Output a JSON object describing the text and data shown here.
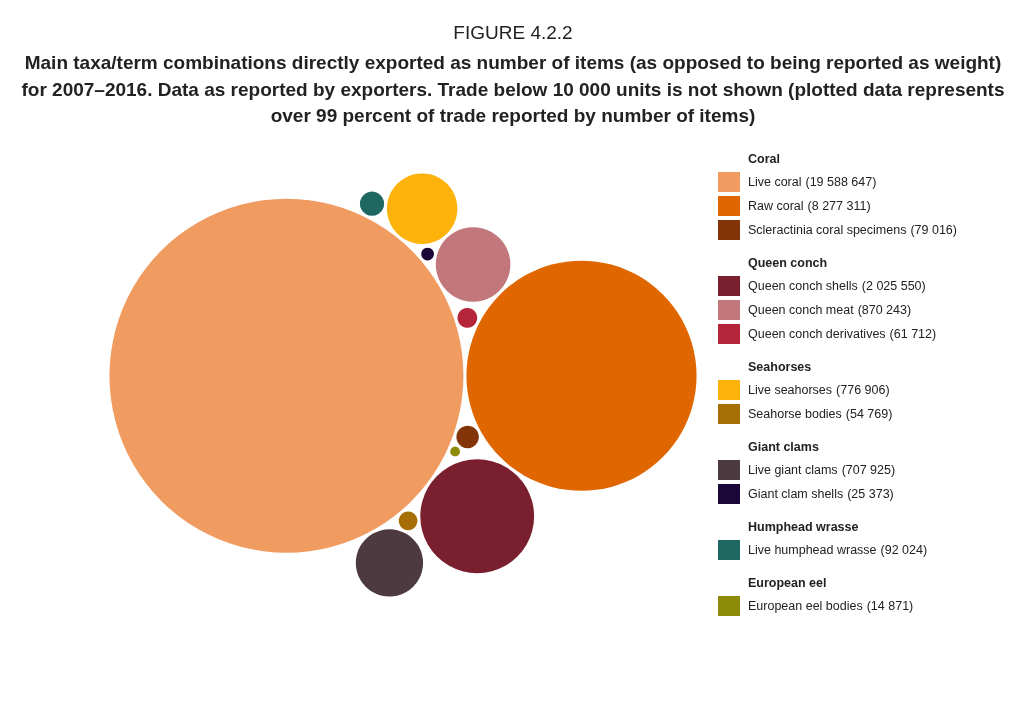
{
  "chart_data": {
    "type": "other",
    "title": "FIGURE 4.2.2",
    "subtitle": "Main taxa/term combinations directly exported as number of items (as opposed to being reported as weight) for 2007–2016. Data as reported by exporters. Trade below 10 000 units is not shown (plotted data represents over 99 percent of trade reported by number of items)",
    "categories": [
      "Live coral",
      "Raw coral",
      "Scleractinia coral specimens",
      "Queen conch shells",
      "Queen conch meat",
      "Queen conch derivatives",
      "Live seahorses",
      "Seahorse bodies",
      "Live giant clams",
      "Giant clam shells",
      "Live humphead wrasse",
      "European eel bodies"
    ],
    "colors": [
      "#f09b60",
      "#e06600",
      "#833408",
      "#7a1f2e",
      "#c2777a",
      "#b5263a",
      "#fdb30c",
      "#a66f05",
      "#4c3a40",
      "#1c0838",
      "#1e6762",
      "#8e8a0a"
    ],
    "series": [
      {
        "name": "Coral",
        "values": [
          19588647,
          8277311,
          79016,
          null,
          null,
          null,
          null,
          null,
          null,
          null,
          null,
          null
        ],
        "value_labels": [
          "(19 588 647)",
          "(8 277 311)",
          "(79 016)",
          null,
          null,
          null,
          null,
          null,
          null,
          null,
          null,
          null
        ]
      },
      {
        "name": "Queen conch",
        "values": [
          null,
          null,
          null,
          2025550,
          870243,
          61712,
          null,
          null,
          null,
          null,
          null,
          null
        ],
        "value_labels": [
          null,
          null,
          null,
          "(2 025 550)",
          "(870 243)",
          "(61 712)",
          null,
          null,
          null,
          null,
          null,
          null
        ]
      },
      {
        "name": "Seahorses",
        "values": [
          null,
          null,
          null,
          null,
          null,
          null,
          776906,
          54769,
          null,
          null,
          null,
          null
        ],
        "value_labels": [
          null,
          null,
          null,
          null,
          null,
          null,
          "(776 906)",
          "(54 769)",
          null,
          null,
          null,
          null
        ]
      },
      {
        "name": "Giant clams",
        "values": [
          null,
          null,
          null,
          null,
          null,
          null,
          null,
          null,
          707925,
          25373,
          null,
          null
        ],
        "value_labels": [
          null,
          null,
          null,
          null,
          null,
          null,
          null,
          null,
          "(707 925)",
          "(25 373)",
          null,
          null
        ]
      },
      {
        "name": "Humphead wrasse",
        "values": [
          null,
          null,
          null,
          null,
          null,
          null,
          null,
          null,
          null,
          null,
          92024,
          null
        ],
        "value_labels": [
          null,
          null,
          null,
          null,
          null,
          null,
          null,
          null,
          null,
          null,
          "(92 024)",
          null
        ]
      },
      {
        "name": "European eel",
        "values": [
          null,
          null,
          null,
          null,
          null,
          null,
          null,
          null,
          null,
          null,
          null,
          14871
        ],
        "value_labels": [
          null,
          null,
          null,
          null,
          null,
          null,
          null,
          null,
          null,
          null,
          null,
          "(14 871)"
        ]
      }
    ]
  }
}
